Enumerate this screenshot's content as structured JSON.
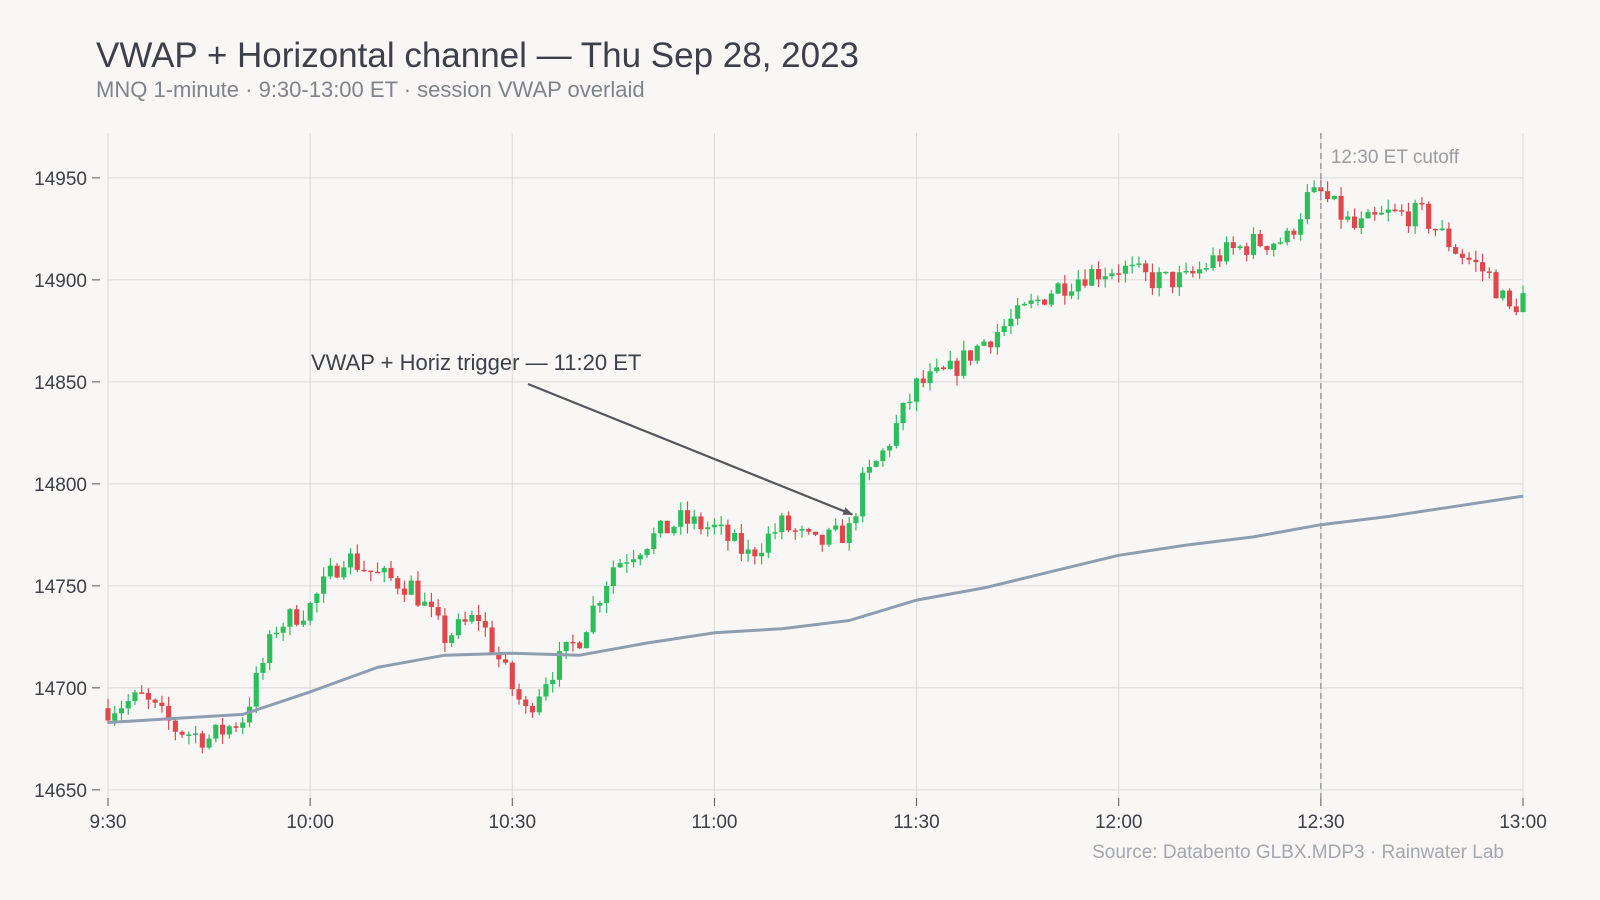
{
  "header": {
    "title": "VWAP + Horizontal channel — Thu Sep 28, 2023",
    "subtitle": "MNQ 1-minute · 9:30-13:00 ET · session VWAP overlaid"
  },
  "footer": {
    "source": "Source: Databento GLBX.MDP3 · Rainwater Lab"
  },
  "chart_data": {
    "type": "candlestick",
    "title": "VWAP + Horizontal channel — Thu Sep 28, 2023",
    "subtitle": "MNQ 1-minute · 9:30-13:00 ET · session VWAP overlaid",
    "xlabel": "",
    "ylabel": "",
    "x_ticks": [
      "9:30",
      "10:00",
      "10:30",
      "11:00",
      "11:30",
      "12:00",
      "12:30",
      "13:00"
    ],
    "y_ticks": [
      14650,
      14700,
      14750,
      14800,
      14850,
      14900,
      14950
    ],
    "xlim": [
      "9:30",
      "13:00"
    ],
    "ylim": [
      14646,
      14972
    ],
    "grid": true,
    "colors": {
      "up": "#2bbf5c",
      "down": "#e0474c",
      "vwap": "#8f9db0",
      "cutoff": "#9a9ca0",
      "annotation": "#55575d",
      "grid": "#d9d9d9"
    },
    "price_path_keypoints": [
      {
        "t": "9:30",
        "price": 14690
      },
      {
        "t": "9:35",
        "price": 14695
      },
      {
        "t": "9:40",
        "price": 14680
      },
      {
        "t": "9:45",
        "price": 14675
      },
      {
        "t": "9:50",
        "price": 14685
      },
      {
        "t": "9:55",
        "price": 14730
      },
      {
        "t": "10:00",
        "price": 14740
      },
      {
        "t": "10:05",
        "price": 14765
      },
      {
        "t": "10:10",
        "price": 14755
      },
      {
        "t": "10:15",
        "price": 14750
      },
      {
        "t": "10:20",
        "price": 14725
      },
      {
        "t": "10:25",
        "price": 14735
      },
      {
        "t": "10:30",
        "price": 14700
      },
      {
        "t": "10:32",
        "price": 14688
      },
      {
        "t": "10:35",
        "price": 14705
      },
      {
        "t": "10:40",
        "price": 14725
      },
      {
        "t": "10:45",
        "price": 14760
      },
      {
        "t": "10:50",
        "price": 14772
      },
      {
        "t": "10:55",
        "price": 14782
      },
      {
        "t": "11:00",
        "price": 14778
      },
      {
        "t": "11:05",
        "price": 14765
      },
      {
        "t": "11:10",
        "price": 14780
      },
      {
        "t": "11:15",
        "price": 14770
      },
      {
        "t": "11:20",
        "price": 14777
      },
      {
        "t": "11:22",
        "price": 14800
      },
      {
        "t": "11:25",
        "price": 14815
      },
      {
        "t": "11:30",
        "price": 14848
      },
      {
        "t": "11:35",
        "price": 14855
      },
      {
        "t": "11:40",
        "price": 14870
      },
      {
        "t": "11:45",
        "price": 14882
      },
      {
        "t": "11:50",
        "price": 14895
      },
      {
        "t": "11:55",
        "price": 14903
      },
      {
        "t": "12:00",
        "price": 14906
      },
      {
        "t": "12:05",
        "price": 14900
      },
      {
        "t": "12:10",
        "price": 14900
      },
      {
        "t": "12:15",
        "price": 14912
      },
      {
        "t": "12:20",
        "price": 14918
      },
      {
        "t": "12:25",
        "price": 14920
      },
      {
        "t": "12:28",
        "price": 14940
      },
      {
        "t": "12:30",
        "price": 14942
      },
      {
        "t": "12:35",
        "price": 14925
      },
      {
        "t": "12:40",
        "price": 14932
      },
      {
        "t": "12:45",
        "price": 14932
      },
      {
        "t": "12:50",
        "price": 14915
      },
      {
        "t": "12:55",
        "price": 14902
      },
      {
        "t": "12:58",
        "price": 14885
      },
      {
        "t": "13:00",
        "price": 14892
      }
    ],
    "series": [
      {
        "name": "",
        "kind": "vwap",
        "x": [
          "9:30",
          "9:40",
          "9:50",
          "10:00",
          "10:10",
          "10:20",
          "10:30",
          "10:40",
          "10:50",
          "11:00",
          "11:10",
          "11:20",
          "11:30",
          "11:40",
          "11:50",
          "12:00",
          "12:10",
          "12:20",
          "12:30",
          "12:40",
          "12:50",
          "13:00"
        ],
        "values": [
          14683,
          14685,
          14687,
          14698,
          14710,
          14716,
          14717,
          14716,
          14722,
          14727,
          14729,
          14733,
          14743,
          14749,
          14757,
          14765,
          14770,
          14774,
          14780,
          14784,
          14789,
          14794
        ]
      }
    ],
    "annotations": [
      {
        "text": "VWAP + Horiz trigger — 11:20 ET",
        "x": "11:20",
        "y": 14785
      },
      {
        "text": "12:30 ET cutoff",
        "x": "12:30"
      }
    ]
  }
}
